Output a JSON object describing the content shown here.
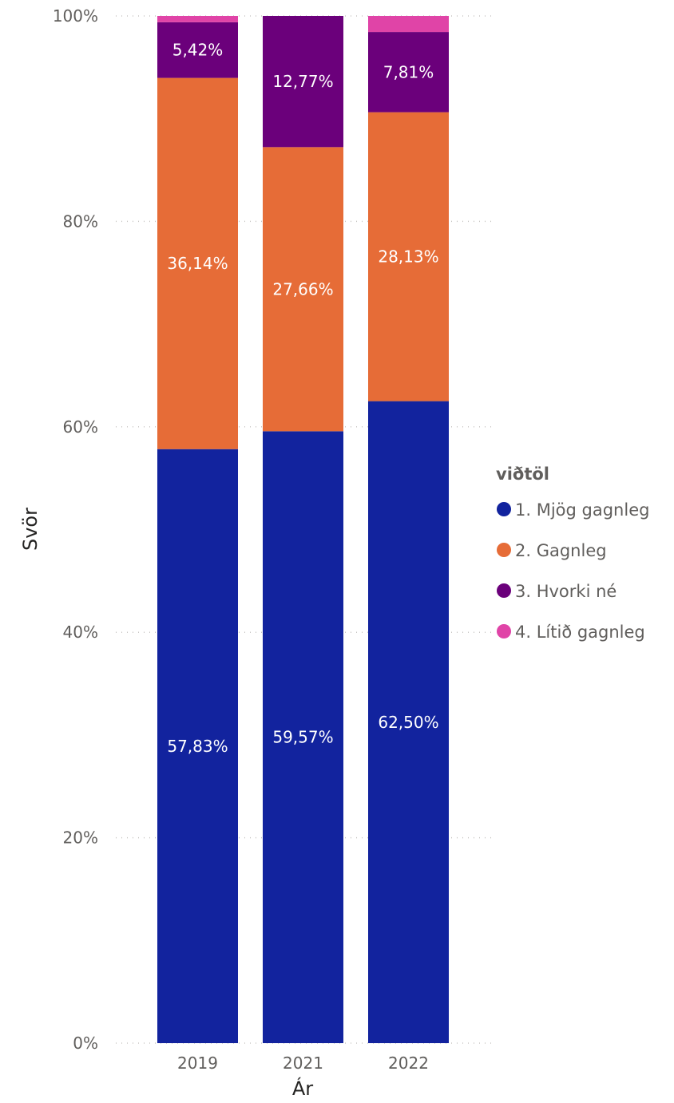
{
  "chart_data": {
    "type": "bar",
    "stacked": true,
    "percent": true,
    "categories": [
      "2019",
      "2021",
      "2022"
    ],
    "xlabel": "Ár",
    "ylabel": "Svör",
    "ylim": [
      0,
      100
    ],
    "yticks": [
      "0%",
      "20%",
      "40%",
      "60%",
      "80%",
      "100%"
    ],
    "grid": true,
    "legend": {
      "title": "viðtöl",
      "position": "right"
    },
    "series": [
      {
        "name": "1. Mjög gagnleg",
        "color": "#12239e",
        "values": [
          57.83,
          59.57,
          62.5
        ],
        "labels": [
          "57,83%",
          "59,57%",
          "62,50%"
        ]
      },
      {
        "name": "2. Gagnleg",
        "color": "#e66c37",
        "values": [
          36.14,
          27.66,
          28.13
        ],
        "labels": [
          "36,14%",
          "27,66%",
          "28,13%"
        ]
      },
      {
        "name": "3. Hvorki né",
        "color": "#6b007b",
        "values": [
          5.42,
          12.77,
          7.81
        ],
        "labels": [
          "5,42%",
          "12,77%",
          "7,81%"
        ]
      },
      {
        "name": "4. Lítið gagnleg",
        "color": "#e044a7",
        "values": [
          0.61,
          0.0,
          1.56
        ],
        "labels": [
          "",
          "",
          ""
        ]
      }
    ]
  }
}
